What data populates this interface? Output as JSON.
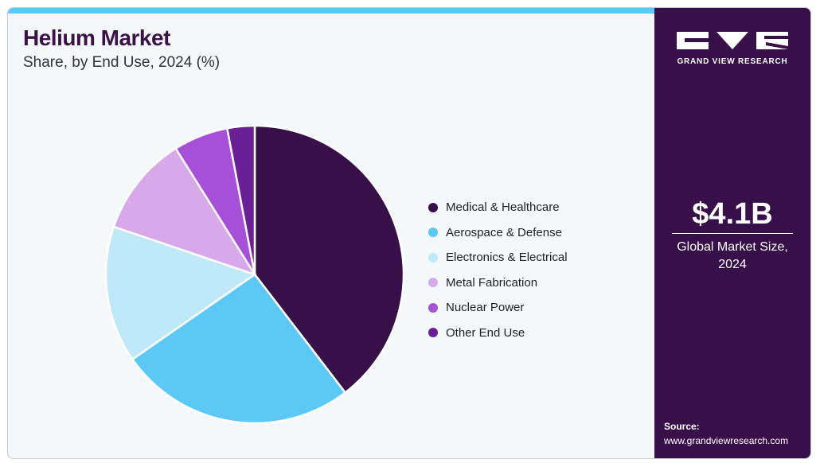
{
  "header": {
    "title": "Helium Market",
    "subtitle": "Share, by End Use, 2024 (%)"
  },
  "chart_data": {
    "type": "pie",
    "title": "Helium Market",
    "subtitle": "Share, by End Use, 2024 (%)",
    "legend_position": "right",
    "categories": [
      "Medical & Healthcare",
      "Aerospace & Defense",
      "Electronics & Electrical",
      "Metal Fabrication",
      "Nuclear Power",
      "Other End Use"
    ],
    "values": [
      40,
      26,
      15,
      11,
      6,
      3
    ],
    "colors": [
      "#371049",
      "#5bc8f5",
      "#bfe9f9",
      "#d7a8ea",
      "#a64fd8",
      "#6a1f96"
    ]
  },
  "sidebar": {
    "brand": "GRAND VIEW RESEARCH",
    "market_size_value": "$4.1B",
    "market_size_label": "Global Market Size, 2024",
    "source_label": "Source:",
    "source_url": "www.grandviewresearch.com"
  }
}
